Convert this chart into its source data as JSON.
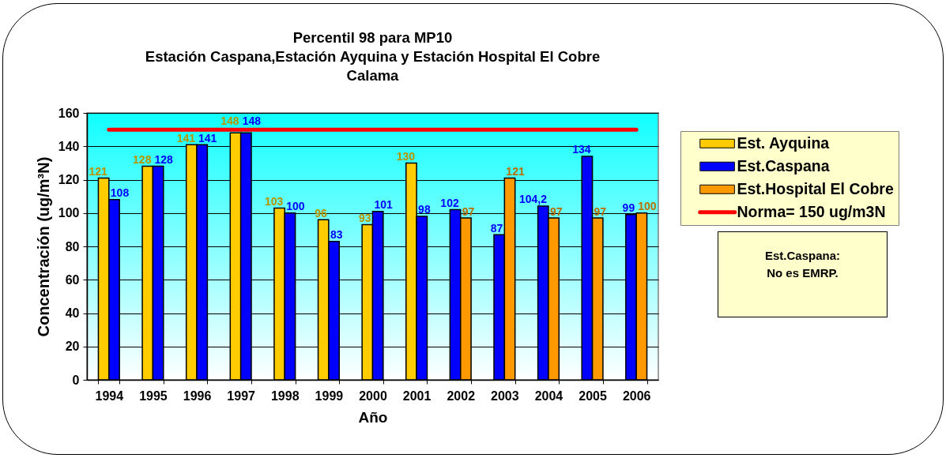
{
  "chart_data": {
    "type": "bar",
    "title": "Percentil 98 para MP10\nEstación Caspana,Estación Ayquina y Estación Hospital El Cobre\nCalama",
    "xlabel": "Año",
    "ylabel": "Concentración (ug/m³N)",
    "categories": [
      "1994",
      "1995",
      "1996",
      "1997",
      "1998",
      "1999",
      "2000",
      "2001",
      "2002",
      "2003",
      "2004",
      "2005",
      "2006"
    ],
    "series": [
      {
        "name": "Est. Ayquina",
        "color": "#ffcc00",
        "values": [
          121,
          128,
          141,
          148,
          103,
          96,
          93,
          130,
          null,
          null,
          null,
          null,
          null
        ],
        "value_labels": [
          "121",
          "128",
          "141",
          "148",
          "103",
          "96",
          "93",
          "130",
          null,
          null,
          null,
          null,
          null
        ]
      },
      {
        "name": "Est.Caspana",
        "color": "#0000ff",
        "values": [
          108,
          128,
          141,
          148,
          100,
          83,
          101,
          98,
          102,
          87,
          104.2,
          134,
          99
        ],
        "value_labels": [
          "108",
          "128",
          "141",
          "148",
          "100",
          "83",
          "101",
          "98",
          "102",
          "87",
          "104,2",
          "134",
          "99"
        ]
      },
      {
        "name": "Est.Hospital El Cobre",
        "color": "#ff9900",
        "values": [
          null,
          null,
          null,
          null,
          null,
          null,
          null,
          null,
          97,
          121,
          97,
          97,
          100
        ],
        "value_labels": [
          null,
          null,
          null,
          null,
          null,
          null,
          null,
          null,
          "97",
          "121",
          "97",
          "97",
          "100"
        ]
      }
    ],
    "ylim": [
      0,
      160
    ],
    "yticks": [
      0,
      20,
      40,
      60,
      80,
      100,
      120,
      140,
      160
    ],
    "grid": "y",
    "legend": "right",
    "ref_lines": [
      {
        "axis": "y",
        "value": 150,
        "label": "Norma= 150 ug/m3N",
        "color": "#ff0000"
      }
    ],
    "annotations": [
      "Est.Caspana:\nNo es EMRP."
    ]
  }
}
